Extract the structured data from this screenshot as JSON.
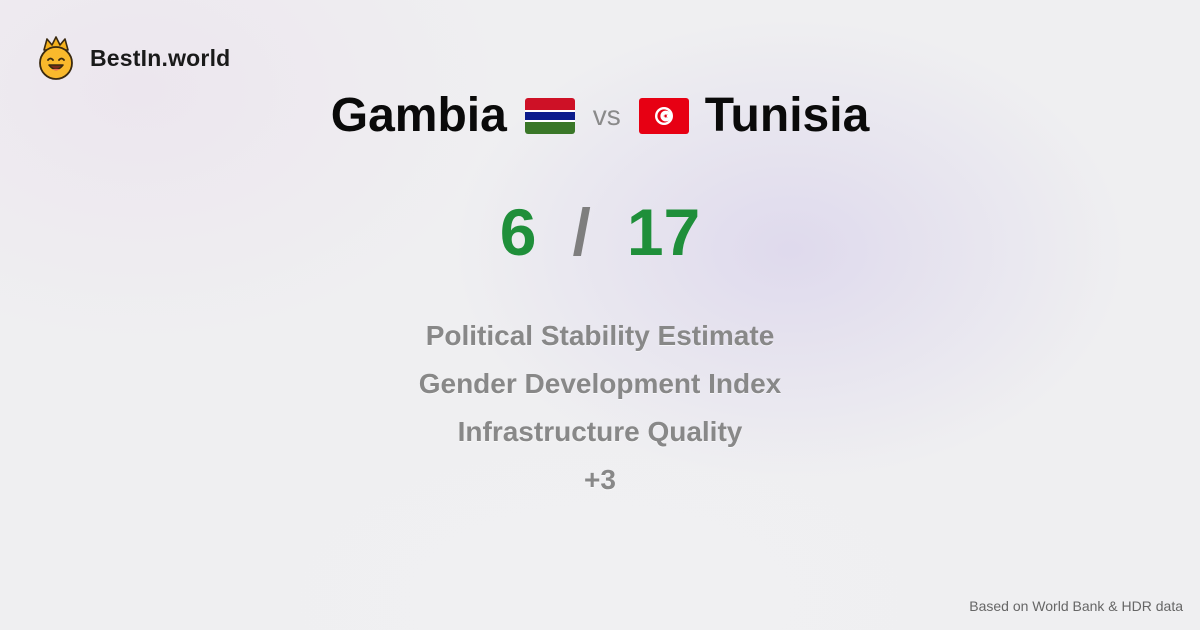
{
  "brand": {
    "name": "BestIn.world",
    "logo_icon": "crown-smiley-icon"
  },
  "comparison": {
    "left_country": "Gambia",
    "left_flag_icon": "gambia-flag-icon",
    "vs_label": "vs",
    "right_country": "Tunisia",
    "right_flag_icon": "tunisia-flag-icon"
  },
  "score": {
    "left": "6",
    "separator": "/",
    "right": "17",
    "color": "#1f8f3a"
  },
  "metrics": [
    "Political Stability Estimate",
    "Gender Development Index",
    "Infrastructure Quality",
    "+3"
  ],
  "footer": {
    "source": "Based on World Bank & HDR data"
  }
}
